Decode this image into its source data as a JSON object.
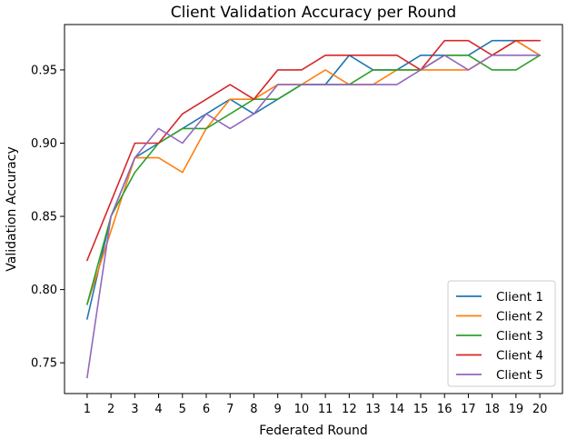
{
  "chart_data": {
    "type": "line",
    "title": "Client Validation Accuracy per Round",
    "xlabel": "Federated Round",
    "ylabel": "Validation Accuracy",
    "x": [
      1,
      2,
      3,
      4,
      5,
      6,
      7,
      8,
      9,
      10,
      11,
      12,
      13,
      14,
      15,
      16,
      17,
      18,
      19,
      20
    ],
    "x_ticks": [
      "1",
      "2",
      "3",
      "4",
      "5",
      "6",
      "7",
      "8",
      "9",
      "10",
      "11",
      "12",
      "13",
      "14",
      "15",
      "16",
      "17",
      "18",
      "19",
      "20"
    ],
    "y_ticks": [
      "0.75",
      "0.80",
      "0.85",
      "0.90",
      "0.95"
    ],
    "y_tick_values": [
      0.75,
      0.8,
      0.85,
      0.9,
      0.95
    ],
    "xlim": [
      0.05,
      20.95
    ],
    "ylim": [
      0.729,
      0.981
    ],
    "grid": false,
    "legend_position": "lower-right",
    "series": [
      {
        "name": "Client 1",
        "color": "#1f77b4",
        "values": [
          0.78,
          0.85,
          0.89,
          0.9,
          0.91,
          0.92,
          0.93,
          0.92,
          0.93,
          0.94,
          0.94,
          0.96,
          0.95,
          0.95,
          0.96,
          0.96,
          0.96,
          0.97,
          0.97,
          0.96
        ]
      },
      {
        "name": "Client 2",
        "color": "#ff7f0e",
        "values": [
          0.79,
          0.84,
          0.89,
          0.89,
          0.88,
          0.91,
          0.93,
          0.93,
          0.94,
          0.94,
          0.95,
          0.94,
          0.94,
          0.95,
          0.95,
          0.95,
          0.95,
          0.96,
          0.97,
          0.96
        ]
      },
      {
        "name": "Client 3",
        "color": "#2ca02c",
        "values": [
          0.79,
          0.85,
          0.88,
          0.9,
          0.91,
          0.91,
          0.92,
          0.93,
          0.93,
          0.94,
          0.94,
          0.94,
          0.95,
          0.95,
          0.95,
          0.96,
          0.96,
          0.95,
          0.95,
          0.96
        ]
      },
      {
        "name": "Client 4",
        "color": "#d62728",
        "values": [
          0.82,
          0.86,
          0.9,
          0.9,
          0.92,
          0.93,
          0.94,
          0.93,
          0.95,
          0.95,
          0.96,
          0.96,
          0.96,
          0.96,
          0.95,
          0.97,
          0.97,
          0.96,
          0.97,
          0.97
        ]
      },
      {
        "name": "Client 5",
        "color": "#9467bd",
        "values": [
          0.74,
          0.85,
          0.89,
          0.91,
          0.9,
          0.92,
          0.91,
          0.92,
          0.94,
          0.94,
          0.94,
          0.94,
          0.94,
          0.94,
          0.95,
          0.96,
          0.95,
          0.96,
          0.96,
          0.96
        ]
      }
    ]
  }
}
